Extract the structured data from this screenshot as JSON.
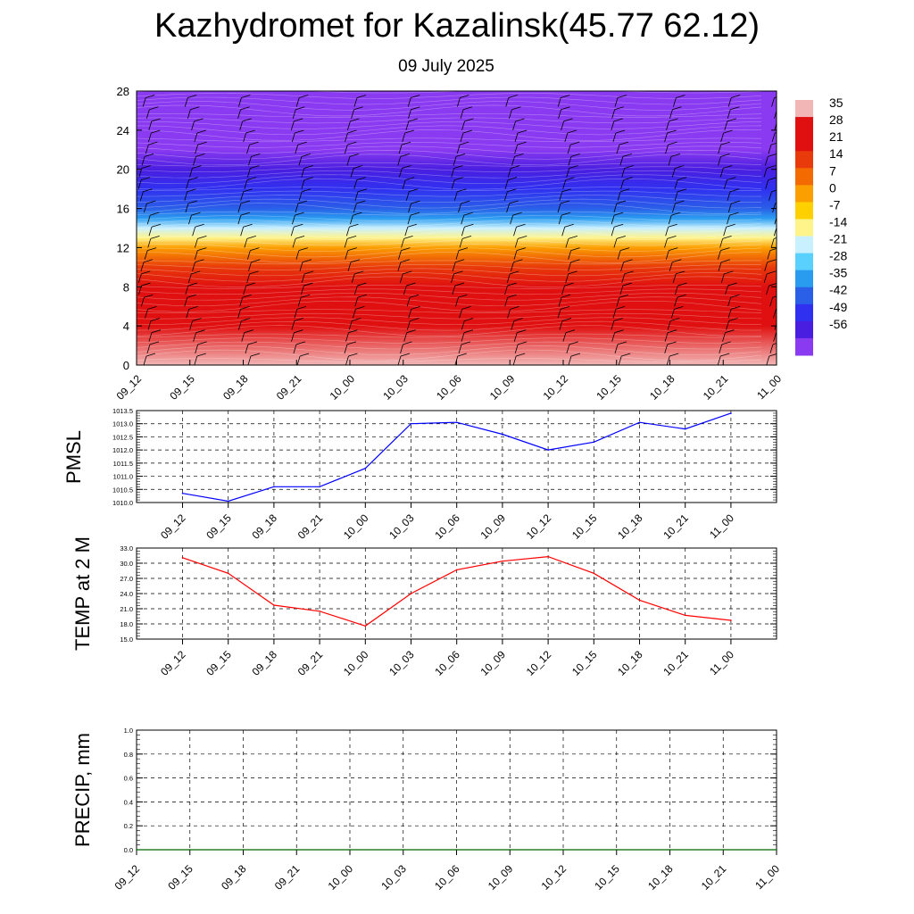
{
  "title": "Kazhydromet for Kazalinsk(45.77 62.12)",
  "subtitle": "09 July 2025",
  "colors": {
    "pmsl_line": "#0000ff",
    "temp_line": "#ff0000",
    "precip_line": "#006400",
    "grid": "#000000"
  },
  "chart_data": [
    {
      "type": "heatmap",
      "title": "",
      "ylabel": "",
      "x_ticks": [
        "09_12",
        "09_15",
        "09_18",
        "09_21",
        "10_00",
        "10_03",
        "10_06",
        "10_09",
        "10_12",
        "10_15",
        "10_18",
        "10_21",
        "11_00"
      ],
      "y_ticks": [
        0,
        4,
        8,
        12,
        16,
        20,
        24,
        28
      ],
      "ylim": [
        0,
        28
      ],
      "colorbar_labels": [
        "35",
        "28",
        "21",
        "14",
        "7",
        "0",
        "-7",
        "-14",
        "-21",
        "-28",
        "-35",
        "-42",
        "-49",
        "-56"
      ],
      "colorbar_colors": [
        "#f2b6b6",
        "#e01010",
        "#e01010",
        "#e83a0a",
        "#f26a00",
        "#fb9e00",
        "#ffd000",
        "#fff48a",
        "#c9f0ff",
        "#5ad0ff",
        "#2a9cf0",
        "#2a5fe8",
        "#3030f0",
        "#4a1ee0",
        "#8a3af0"
      ],
      "temperature_profile": {
        "heights": [
          0,
          4,
          8,
          10,
          12,
          13,
          14,
          15,
          16,
          18,
          20,
          22,
          24,
          26,
          28
        ],
        "values": [
          32,
          28,
          20,
          12,
          2,
          -10,
          -20,
          -30,
          -38,
          -44,
          -50,
          -55,
          -58,
          -56,
          -58
        ]
      },
      "wind_barbs": "present",
      "grid": false
    },
    {
      "type": "line",
      "ylabel": "PMSL",
      "categories": [
        "09_12",
        "09_15",
        "09_18",
        "09_21",
        "10_00",
        "10_03",
        "10_06",
        "10_09",
        "10_12",
        "10_15",
        "10_18",
        "10_21",
        "11_00"
      ],
      "values": [
        1010.35,
        1010.05,
        1010.6,
        1010.6,
        1011.3,
        1013.0,
        1013.05,
        1012.6,
        1012.0,
        1012.3,
        1013.05,
        1012.8,
        1013.4
      ],
      "ylim": [
        1010.0,
        1013.5
      ],
      "y_ticks": [
        "1010.0",
        "1010.5",
        "1011.0",
        "1011.5",
        "1012.0",
        "1012.5",
        "1013.0",
        "1013.5"
      ],
      "grid": true
    },
    {
      "type": "line",
      "ylabel": "TEMP at 2 M",
      "categories": [
        "09_12",
        "09_15",
        "09_18",
        "09_21",
        "10_00",
        "10_03",
        "10_06",
        "10_09",
        "10_12",
        "10_15",
        "10_18",
        "10_21",
        "11_00"
      ],
      "values": [
        31.1,
        28.0,
        21.7,
        20.5,
        17.6,
        24.0,
        28.7,
        30.4,
        31.3,
        28.0,
        22.7,
        19.7,
        18.7
      ],
      "ylim": [
        15.0,
        33.0
      ],
      "y_ticks": [
        "15.0",
        "18.0",
        "21.0",
        "24.0",
        "27.0",
        "30.0",
        "33.0"
      ],
      "grid": true
    },
    {
      "type": "line",
      "ylabel": "PRECIP, mm",
      "categories": [
        "09_12",
        "09_15",
        "09_18",
        "09_21",
        "10_00",
        "10_03",
        "10_06",
        "10_09",
        "10_12",
        "10_15",
        "10_18",
        "10_21",
        "11_00"
      ],
      "values": [
        0,
        0,
        0,
        0,
        0,
        0,
        0,
        0,
        0,
        0,
        0,
        0,
        0
      ],
      "ylim": [
        0.0,
        1.0
      ],
      "y_ticks": [
        "0.0",
        "0.2",
        "0.4",
        "0.6",
        "0.8",
        "1.0"
      ],
      "grid": true
    }
  ]
}
